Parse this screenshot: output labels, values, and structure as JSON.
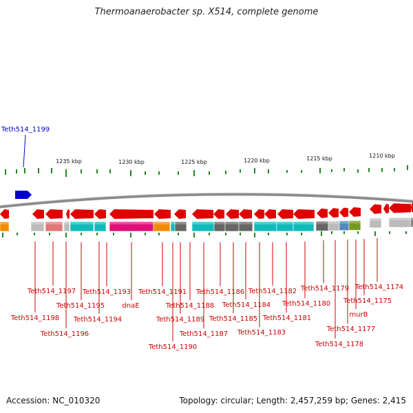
{
  "title": "Thermoanaerobacter sp. X514, complete genome",
  "footer": {
    "accession": "Accession: NC_010320",
    "summary": "Topology: circular; Length: 2,457,259 bp; Genes: 2,415"
  },
  "scale_labels": [
    "1235 kbp",
    "1230 kbp",
    "1225 kbp",
    "1220 kbp",
    "1215 kbp",
    "1210 kbp"
  ],
  "highlight_gene": "Teth514_1199",
  "gene_labels": [
    "Teth514_1198",
    "Teth514_1197",
    "Teth514_1196",
    "Teth514_1195",
    "Teth514_1194",
    "Teth514_1193",
    "dnaE",
    "Teth514_1191",
    "Teth514_1190",
    "Teth514_1189",
    "Teth514_1188",
    "Teth514_1187",
    "Teth514_1186",
    "Teth514_1185",
    "Teth514_1184",
    "Teth514_1183",
    "Teth514_1182",
    "Teth514_1181",
    "Teth514_1180",
    "Teth514_1179",
    "Teth514_1178",
    "Teth514_1177",
    "murB",
    "Teth514_1175",
    "Teth514_1174"
  ],
  "colors": {
    "gene_red": "#e00000",
    "highlight_blue": "#0000cc",
    "label_red": "#cc0000",
    "tick_green": "#228822",
    "backbone": "#888888",
    "cog_cyan": "#11bbbb",
    "cog_magenta": "#e0107a",
    "cog_orange": "#f28a00",
    "cog_grey": "#666666",
    "cog_lightgrey": "#bbbbbb",
    "cog_pink": "#e07878",
    "cog_olive": "#779922",
    "cog_steel": "#5588bb"
  }
}
